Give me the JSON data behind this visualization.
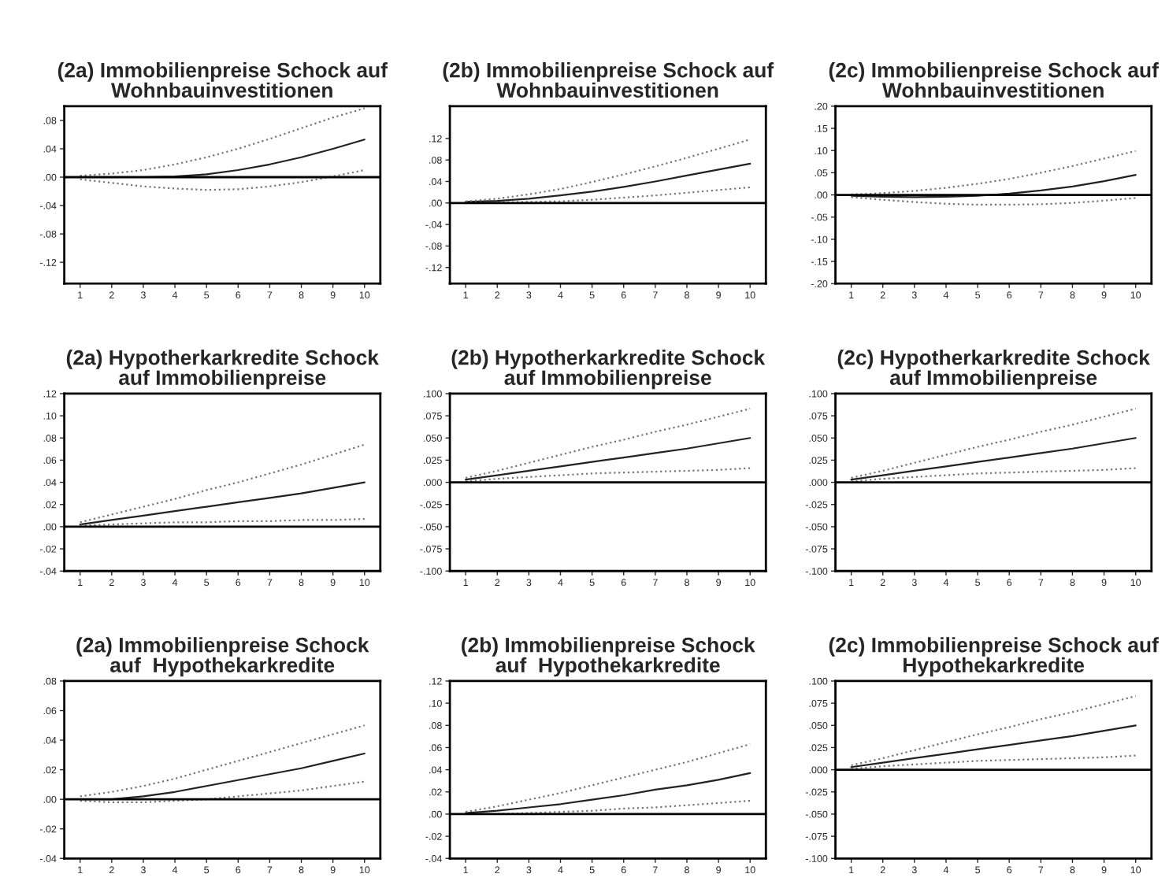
{
  "chart_data": [
    {
      "type": "line",
      "title": "(2a) Immobilienpreise Schock auf\nWohnbauinvestitionen",
      "x": [
        1,
        2,
        3,
        4,
        5,
        6,
        7,
        8,
        9,
        10
      ],
      "xlim": [
        0.5,
        10.5
      ],
      "xticks": [
        1,
        2,
        3,
        4,
        5,
        6,
        7,
        8,
        9,
        10
      ],
      "ylim": [
        -0.15,
        0.1
      ],
      "yticks": [
        {
          "value": -0.12,
          "label": "-.12"
        },
        {
          "value": -0.08,
          "label": "-.08"
        },
        {
          "value": -0.04,
          "label": "-.04"
        },
        {
          "value": 0,
          "label": ".00"
        },
        {
          "value": 0.04,
          "label": ".04"
        },
        {
          "value": 0.08,
          "label": ".08"
        }
      ],
      "ref_lines": [
        {
          "axis": "y",
          "value": 0,
          "color": "#000000",
          "line_style": "solid"
        }
      ],
      "grid": false,
      "legend": false,
      "series": [
        {
          "color": "#222222",
          "line_style": "solid",
          "values": [
            0,
            0,
            0,
            0.001,
            0.004,
            0.01,
            0.018,
            0.028,
            0.04,
            0.053
          ]
        },
        {
          "color": "#777777",
          "line_style": "dotted",
          "values": [
            0.002,
            0.005,
            0.01,
            0.018,
            0.028,
            0.04,
            0.054,
            0.069,
            0.084,
            0.097
          ]
        },
        {
          "color": "#777777",
          "line_style": "dotted",
          "values": [
            -0.003,
            -0.008,
            -0.013,
            -0.016,
            -0.018,
            -0.017,
            -0.013,
            -0.007,
            0.001,
            0.01
          ]
        }
      ]
    },
    {
      "type": "line",
      "title": "(2b) Immobilienpreise Schock auf\nWohnbauinvestitionen",
      "x": [
        1,
        2,
        3,
        4,
        5,
        6,
        7,
        8,
        9,
        10
      ],
      "xlim": [
        0.5,
        10.5
      ],
      "xticks": [
        1,
        2,
        3,
        4,
        5,
        6,
        7,
        8,
        9,
        10
      ],
      "ylim": [
        -0.15,
        0.18
      ],
      "yticks": [
        {
          "value": -0.12,
          "label": "-.12"
        },
        {
          "value": -0.08,
          "label": "-.08"
        },
        {
          "value": -0.04,
          "label": "-.04"
        },
        {
          "value": 0,
          "label": ".00"
        },
        {
          "value": 0.04,
          "label": ".04"
        },
        {
          "value": 0.08,
          "label": ".08"
        },
        {
          "value": 0.12,
          "label": ".12"
        }
      ],
      "ref_lines": [
        {
          "axis": "y",
          "value": 0,
          "color": "#000000",
          "line_style": "solid"
        }
      ],
      "grid": false,
      "legend": false,
      "series": [
        {
          "color": "#222222",
          "line_style": "solid",
          "values": [
            0.002,
            0.004,
            0.008,
            0.014,
            0.021,
            0.03,
            0.04,
            0.051,
            0.062,
            0.073
          ]
        },
        {
          "color": "#777777",
          "line_style": "dotted",
          "values": [
            0.003,
            0.008,
            0.016,
            0.026,
            0.039,
            0.053,
            0.068,
            0.084,
            0.101,
            0.118
          ]
        },
        {
          "color": "#777777",
          "line_style": "dotted",
          "values": [
            0.001,
            0.001,
            0.002,
            0.003,
            0.006,
            0.01,
            0.014,
            0.019,
            0.024,
            0.029
          ]
        }
      ]
    },
    {
      "type": "line",
      "title": "(2c) Immobilienpreise Schock auf\nWohnbauinvestitionen",
      "x": [
        1,
        2,
        3,
        4,
        5,
        6,
        7,
        8,
        9,
        10
      ],
      "xlim": [
        0.5,
        10.5
      ],
      "xticks": [
        1,
        2,
        3,
        4,
        5,
        6,
        7,
        8,
        9,
        10
      ],
      "ylim": [
        -0.2,
        0.2
      ],
      "yticks": [
        {
          "value": -0.2,
          "label": "-.20"
        },
        {
          "value": -0.15,
          "label": "-.15"
        },
        {
          "value": -0.1,
          "label": "-.10"
        },
        {
          "value": -0.05,
          "label": "-.05"
        },
        {
          "value": 0,
          "label": ".00"
        },
        {
          "value": 0.05,
          "label": ".05"
        },
        {
          "value": 0.1,
          "label": ".10"
        },
        {
          "value": 0.15,
          "label": ".15"
        },
        {
          "value": 0.2,
          "label": ".20"
        }
      ],
      "ref_lines": [
        {
          "axis": "y",
          "value": 0,
          "color": "#000000",
          "line_style": "solid"
        }
      ],
      "grid": false,
      "legend": false,
      "series": [
        {
          "color": "#222222",
          "line_style": "solid",
          "values": [
            -0.002,
            -0.004,
            -0.005,
            -0.004,
            -0.002,
            0.003,
            0.01,
            0.019,
            0.031,
            0.045
          ]
        },
        {
          "color": "#777777",
          "line_style": "dotted",
          "values": [
            0.001,
            0.004,
            0.009,
            0.016,
            0.025,
            0.036,
            0.05,
            0.065,
            0.082,
            0.099
          ]
        },
        {
          "color": "#777777",
          "line_style": "dotted",
          "values": [
            -0.005,
            -0.011,
            -0.016,
            -0.02,
            -0.022,
            -0.022,
            -0.021,
            -0.018,
            -0.013,
            -0.007
          ]
        }
      ]
    },
    {
      "type": "line",
      "title": "(2a) Hypotherkarkredite Schock\nauf Immobilienpreise",
      "x": [
        1,
        2,
        3,
        4,
        5,
        6,
        7,
        8,
        9,
        10
      ],
      "xlim": [
        0.5,
        10.5
      ],
      "xticks": [
        1,
        2,
        3,
        4,
        5,
        6,
        7,
        8,
        9,
        10
      ],
      "ylim": [
        -0.04,
        0.12
      ],
      "yticks": [
        {
          "value": -0.04,
          "label": "-.04"
        },
        {
          "value": -0.02,
          "label": "-.02"
        },
        {
          "value": 0,
          "label": ".00"
        },
        {
          "value": 0.02,
          "label": ".02"
        },
        {
          "value": 0.04,
          "label": ".04"
        },
        {
          "value": 0.06,
          "label": ".06"
        },
        {
          "value": 0.08,
          "label": ".08"
        },
        {
          "value": 0.1,
          "label": ".10"
        },
        {
          "value": 0.12,
          "label": ".12"
        }
      ],
      "ref_lines": [
        {
          "axis": "y",
          "value": 0,
          "color": "#000000",
          "line_style": "solid"
        }
      ],
      "grid": false,
      "legend": false,
      "series": [
        {
          "color": "#222222",
          "line_style": "solid",
          "values": [
            0.002,
            0.006,
            0.01,
            0.014,
            0.018,
            0.022,
            0.026,
            0.03,
            0.035,
            0.04
          ]
        },
        {
          "color": "#777777",
          "line_style": "dotted",
          "values": [
            0.004,
            0.011,
            0.018,
            0.025,
            0.033,
            0.04,
            0.048,
            0.056,
            0.065,
            0.074
          ]
        },
        {
          "color": "#777777",
          "line_style": "dotted",
          "values": [
            0.001,
            0.002,
            0.003,
            0.004,
            0.004,
            0.005,
            0.005,
            0.006,
            0.006,
            0.007
          ]
        }
      ]
    },
    {
      "type": "line",
      "title": "(2b) Hypotherkarkredite Schock\nauf Immobilienpreise",
      "x": [
        1,
        2,
        3,
        4,
        5,
        6,
        7,
        8,
        9,
        10
      ],
      "xlim": [
        0.5,
        10.5
      ],
      "xticks": [
        1,
        2,
        3,
        4,
        5,
        6,
        7,
        8,
        9,
        10
      ],
      "ylim": [
        -0.1,
        0.1
      ],
      "yticks": [
        {
          "value": -0.1,
          "label": "-.100"
        },
        {
          "value": -0.075,
          "label": "-.075"
        },
        {
          "value": -0.05,
          "label": "-.050"
        },
        {
          "value": -0.025,
          "label": "-.025"
        },
        {
          "value": 0,
          "label": ".000"
        },
        {
          "value": 0.025,
          "label": ".025"
        },
        {
          "value": 0.05,
          "label": ".050"
        },
        {
          "value": 0.075,
          "label": ".075"
        },
        {
          "value": 0.1,
          "label": ".100"
        }
      ],
      "ref_lines": [
        {
          "axis": "y",
          "value": 0,
          "color": "#000000",
          "line_style": "solid"
        }
      ],
      "grid": false,
      "legend": false,
      "series": [
        {
          "color": "#222222",
          "line_style": "solid",
          "values": [
            0.003,
            0.008,
            0.013,
            0.018,
            0.023,
            0.028,
            0.033,
            0.038,
            0.044,
            0.05
          ]
        },
        {
          "color": "#777777",
          "line_style": "dotted",
          "values": [
            0.005,
            0.013,
            0.022,
            0.031,
            0.04,
            0.048,
            0.057,
            0.065,
            0.074,
            0.083
          ]
        },
        {
          "color": "#777777",
          "line_style": "dotted",
          "values": [
            0.001,
            0.004,
            0.006,
            0.008,
            0.01,
            0.011,
            0.012,
            0.013,
            0.014,
            0.016
          ]
        }
      ]
    },
    {
      "type": "line",
      "title": "(2c) Hypotherkarkredite Schock\nauf Immobilienpreise",
      "x": [
        1,
        2,
        3,
        4,
        5,
        6,
        7,
        8,
        9,
        10
      ],
      "xlim": [
        0.5,
        10.5
      ],
      "xticks": [
        1,
        2,
        3,
        4,
        5,
        6,
        7,
        8,
        9,
        10
      ],
      "ylim": [
        -0.1,
        0.1
      ],
      "yticks": [
        {
          "value": -0.1,
          "label": "-.100"
        },
        {
          "value": -0.075,
          "label": "-.075"
        },
        {
          "value": -0.05,
          "label": "-.050"
        },
        {
          "value": -0.025,
          "label": "-.025"
        },
        {
          "value": 0,
          "label": ".000"
        },
        {
          "value": 0.025,
          "label": ".025"
        },
        {
          "value": 0.05,
          "label": ".050"
        },
        {
          "value": 0.075,
          "label": ".075"
        },
        {
          "value": 0.1,
          "label": ".100"
        }
      ],
      "ref_lines": [
        {
          "axis": "y",
          "value": 0,
          "color": "#000000",
          "line_style": "solid"
        }
      ],
      "grid": false,
      "legend": false,
      "series": [
        {
          "color": "#222222",
          "line_style": "solid",
          "values": [
            0.003,
            0.008,
            0.013,
            0.018,
            0.023,
            0.028,
            0.033,
            0.038,
            0.044,
            0.05
          ]
        },
        {
          "color": "#777777",
          "line_style": "dotted",
          "values": [
            0.005,
            0.013,
            0.022,
            0.031,
            0.04,
            0.048,
            0.057,
            0.065,
            0.074,
            0.083
          ]
        },
        {
          "color": "#777777",
          "line_style": "dotted",
          "values": [
            0.001,
            0.004,
            0.006,
            0.008,
            0.01,
            0.011,
            0.012,
            0.013,
            0.014,
            0.016
          ]
        }
      ]
    },
    {
      "type": "line",
      "title": "(2a) Immobilienpreise Schock\nauf  Hypothekarkredite",
      "x": [
        1,
        2,
        3,
        4,
        5,
        6,
        7,
        8,
        9,
        10
      ],
      "xlim": [
        0.5,
        10.5
      ],
      "xticks": [
        1,
        2,
        3,
        4,
        5,
        6,
        7,
        8,
        9,
        10
      ],
      "ylim": [
        -0.04,
        0.08
      ],
      "yticks": [
        {
          "value": -0.04,
          "label": "-.04"
        },
        {
          "value": -0.02,
          "label": "-.02"
        },
        {
          "value": 0,
          "label": ".00"
        },
        {
          "value": 0.02,
          "label": ".02"
        },
        {
          "value": 0.04,
          "label": ".04"
        },
        {
          "value": 0.06,
          "label": ".06"
        },
        {
          "value": 0.08,
          "label": ".08"
        }
      ],
      "ref_lines": [
        {
          "axis": "y",
          "value": 0,
          "color": "#000000",
          "line_style": "solid"
        }
      ],
      "grid": false,
      "legend": false,
      "series": [
        {
          "color": "#222222",
          "line_style": "solid",
          "values": [
            0,
            0,
            0.002,
            0.005,
            0.009,
            0.013,
            0.017,
            0.021,
            0.026,
            0.031
          ]
        },
        {
          "color": "#777777",
          "line_style": "dotted",
          "values": [
            0.002,
            0.005,
            0.009,
            0.014,
            0.02,
            0.026,
            0.032,
            0.038,
            0.044,
            0.05
          ]
        },
        {
          "color": "#777777",
          "line_style": "dotted",
          "values": [
            -0.001,
            -0.002,
            -0.002,
            -0.001,
            0,
            0.002,
            0.004,
            0.006,
            0.009,
            0.012
          ]
        }
      ]
    },
    {
      "type": "line",
      "title": "(2b) Immobilienpreise Schock\nauf  Hypothekarkredite",
      "x": [
        1,
        2,
        3,
        4,
        5,
        6,
        7,
        8,
        9,
        10
      ],
      "xlim": [
        0.5,
        10.5
      ],
      "xticks": [
        1,
        2,
        3,
        4,
        5,
        6,
        7,
        8,
        9,
        10
      ],
      "ylim": [
        -0.04,
        0.12
      ],
      "yticks": [
        {
          "value": -0.04,
          "label": "-.04"
        },
        {
          "value": -0.02,
          "label": "-.02"
        },
        {
          "value": 0,
          "label": ".00"
        },
        {
          "value": 0.02,
          "label": ".02"
        },
        {
          "value": 0.04,
          "label": ".04"
        },
        {
          "value": 0.06,
          "label": ".06"
        },
        {
          "value": 0.08,
          "label": ".08"
        },
        {
          "value": 0.1,
          "label": ".10"
        },
        {
          "value": 0.12,
          "label": ".12"
        }
      ],
      "ref_lines": [
        {
          "axis": "y",
          "value": 0,
          "color": "#000000",
          "line_style": "solid"
        }
      ],
      "grid": false,
      "legend": false,
      "series": [
        {
          "color": "#222222",
          "line_style": "solid",
          "values": [
            0.001,
            0.003,
            0.006,
            0.009,
            0.013,
            0.017,
            0.022,
            0.026,
            0.031,
            0.037
          ]
        },
        {
          "color": "#777777",
          "line_style": "dotted",
          "values": [
            0.002,
            0.007,
            0.013,
            0.019,
            0.026,
            0.033,
            0.04,
            0.047,
            0.055,
            0.063
          ]
        },
        {
          "color": "#777777",
          "line_style": "dotted",
          "values": [
            0,
            0,
            0.001,
            0.002,
            0.003,
            0.005,
            0.006,
            0.008,
            0.01,
            0.012
          ]
        }
      ]
    },
    {
      "type": "line",
      "title": "(2c) Immobilienpreise Schock auf\nHypothekarkredite",
      "x": [
        1,
        2,
        3,
        4,
        5,
        6,
        7,
        8,
        9,
        10
      ],
      "xlim": [
        0.5,
        10.5
      ],
      "xticks": [
        1,
        2,
        3,
        4,
        5,
        6,
        7,
        8,
        9,
        10
      ],
      "ylim": [
        -0.1,
        0.1
      ],
      "yticks": [
        {
          "value": -0.1,
          "label": "-.100"
        },
        {
          "value": -0.075,
          "label": "-.075"
        },
        {
          "value": -0.05,
          "label": "-.050"
        },
        {
          "value": -0.025,
          "label": "-.025"
        },
        {
          "value": 0,
          "label": ".000"
        },
        {
          "value": 0.025,
          "label": ".025"
        },
        {
          "value": 0.05,
          "label": ".050"
        },
        {
          "value": 0.075,
          "label": ".075"
        },
        {
          "value": 0.1,
          "label": ".100"
        }
      ],
      "ref_lines": [
        {
          "axis": "y",
          "value": 0,
          "color": "#000000",
          "line_style": "solid"
        }
      ],
      "grid": false,
      "legend": false,
      "series": [
        {
          "color": "#222222",
          "line_style": "solid",
          "values": [
            0.003,
            0.008,
            0.013,
            0.018,
            0.023,
            0.028,
            0.033,
            0.038,
            0.044,
            0.05
          ]
        },
        {
          "color": "#777777",
          "line_style": "dotted",
          "values": [
            0.005,
            0.013,
            0.022,
            0.031,
            0.04,
            0.048,
            0.057,
            0.065,
            0.074,
            0.083
          ]
        },
        {
          "color": "#777777",
          "line_style": "dotted",
          "values": [
            0.001,
            0.004,
            0.006,
            0.008,
            0.01,
            0.011,
            0.012,
            0.013,
            0.014,
            0.016
          ]
        }
      ]
    }
  ]
}
